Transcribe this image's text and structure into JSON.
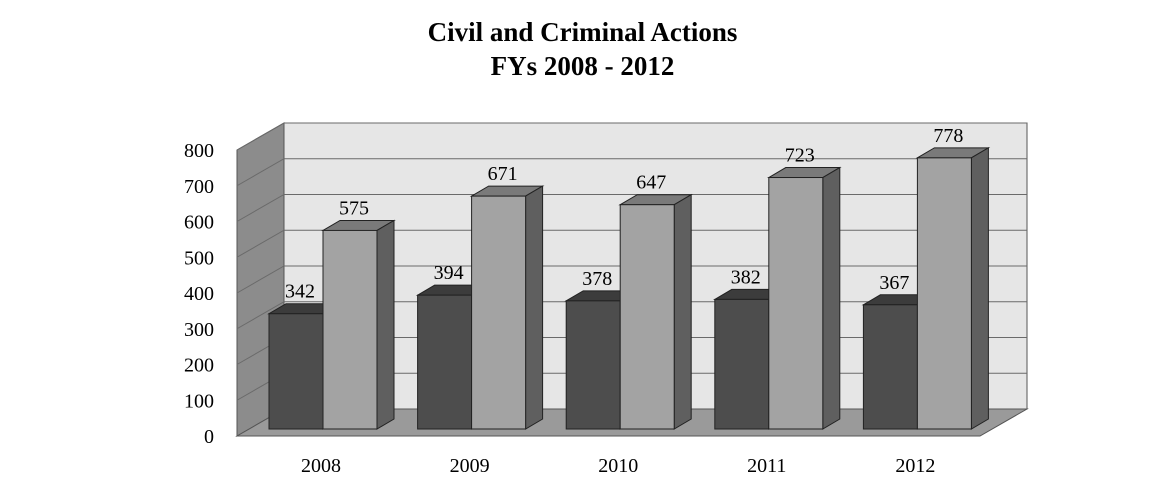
{
  "chart_data": {
    "type": "bar",
    "title": "Civil and Criminal Actions",
    "subtitle": "FYs 2008 - 2012",
    "categories": [
      "2008",
      "2009",
      "2010",
      "2011",
      "2012"
    ],
    "series": [
      {
        "values": [
          342,
          394,
          378,
          382,
          367
        ],
        "color": "#4d4d4d"
      },
      {
        "values": [
          575,
          671,
          647,
          723,
          778
        ],
        "color": "#a3a3a3"
      }
    ],
    "y_ticks": [
      0,
      100,
      200,
      300,
      400,
      500,
      600,
      700,
      800
    ],
    "ylim": [
      0,
      800
    ],
    "xlabel": "",
    "ylabel": "",
    "grid": true,
    "style": "3d-clustered-column"
  }
}
